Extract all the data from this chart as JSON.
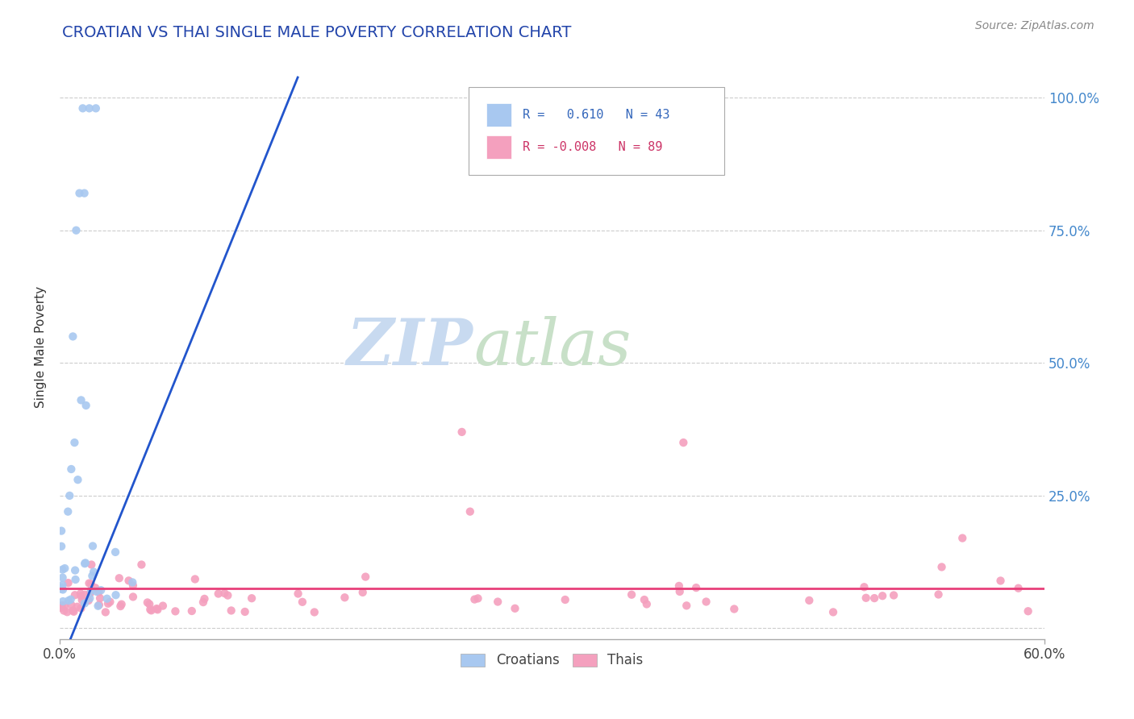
{
  "title": "CROATIAN VS THAI SINGLE MALE POVERTY CORRELATION CHART",
  "source": "Source: ZipAtlas.com",
  "ylabel": "Single Male Poverty",
  "yticks": [
    0.0,
    0.25,
    0.5,
    0.75,
    1.0
  ],
  "ytick_labels": [
    "",
    "25.0%",
    "50.0%",
    "75.0%",
    "100.0%"
  ],
  "xlim": [
    0.0,
    0.6
  ],
  "ylim": [
    -0.02,
    1.08
  ],
  "croatian_color": "#a8c8f0",
  "thai_color": "#f4a0be",
  "trend_blue": "#2255cc",
  "trend_pink": "#e8407a",
  "watermark_zip_color": "#ccddf5",
  "watermark_atlas_color": "#d5e8d0",
  "background_color": "#ffffff",
  "grid_color": "#cccccc",
  "title_color": "#2244aa",
  "ylabel_color": "#333333",
  "tick_color": "#4488cc",
  "source_color": "#888888"
}
